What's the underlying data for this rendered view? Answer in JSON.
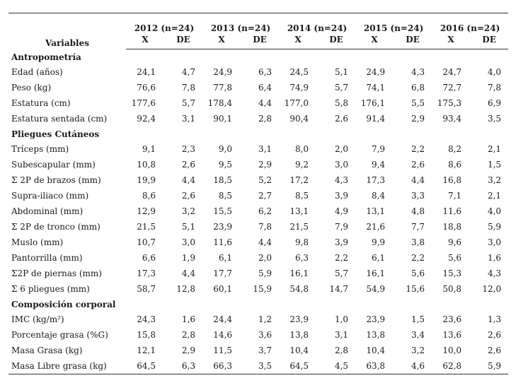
{
  "header": {
    "variables": "Variables",
    "years": [
      "2012 (n=24)",
      "2013 (n=24)",
      "2014 (n=24)",
      "2015 (n=24)",
      "2016 (n=24)"
    ],
    "x": "X",
    "de": "DE"
  },
  "sections": [
    {
      "title": "Antropometría",
      "rows": [
        {
          "label": "Edad (años)",
          "values": [
            "24,1",
            "4,7",
            "24,9",
            "6,3",
            "24,5",
            "5,1",
            "24,9",
            "4,3",
            "24,7",
            "4,0"
          ]
        },
        {
          "label": "Peso (kg)",
          "values": [
            "76,6",
            "7,8",
            "77,8",
            "6,4",
            "74,9",
            "5,7",
            "74,1",
            "6,8",
            "72,7",
            "7,8"
          ]
        },
        {
          "label": "Estatura (cm)",
          "values": [
            "177,6",
            "5,7",
            "178,4",
            "4,4",
            "177,0",
            "5,8",
            "176,1",
            "5,5",
            "175,3",
            "6,9"
          ]
        },
        {
          "label": "Estatura sentada (cm)",
          "values": [
            "92,4",
            "3,1",
            "90,1",
            "2,8",
            "90,4",
            "2,6",
            "91,4",
            "2,9",
            "93,4",
            "3,5"
          ]
        }
      ]
    },
    {
      "title": "Pliegues Cutáneos",
      "rows": [
        {
          "label": "Tríceps (mm)",
          "values": [
            "9,1",
            "2,3",
            "9,0",
            "3,1",
            "8,0",
            "2,0",
            "7,9",
            "2,2",
            "8,2",
            "2,1"
          ]
        },
        {
          "label": "Subescapular (mm)",
          "values": [
            "10,8",
            "2,6",
            "9,5",
            "2,9",
            "9,2",
            "3,0",
            "9,4",
            "2,6",
            "8,6",
            "1,5"
          ]
        },
        {
          "label": "Σ  2P de brazos (mm)",
          "values": [
            "19,9",
            "4,4",
            "18,5",
            "5,2",
            "17,2",
            "4,3",
            "17,3",
            "4,4",
            "16,8",
            "3,2"
          ]
        },
        {
          "label": "Supra-iliaco (mm)",
          "values": [
            "8,6",
            "2,6",
            "8,5",
            "2,7",
            "8,5",
            "3,9",
            "8,4",
            "3,3",
            "7,1",
            "2,1"
          ]
        },
        {
          "label": "Abdominal (mm)",
          "values": [
            "12,9",
            "3,2",
            "15,5",
            "6,2",
            "13,1",
            "4,9",
            "13,1",
            "4,8",
            "11,6",
            "4,0"
          ]
        },
        {
          "label": "Σ 2P de tronco (mm)",
          "values": [
            "21,5",
            "5,1",
            "23,9",
            "7,8",
            "21,5",
            "7,9",
            "21,6",
            "7,7",
            "18,8",
            "5,9"
          ]
        },
        {
          "label": "Muslo (mm)",
          "values": [
            "10,7",
            "3,0",
            "11,6",
            "4,4",
            "9,8",
            "3,9",
            "9,9",
            "3,8",
            "9,6",
            "3,0"
          ]
        },
        {
          "label": "Pantorrilla (mm)",
          "values": [
            "6,6",
            "1,9",
            "6,1",
            "2,0",
            "6,3",
            "2,2",
            "6,1",
            "2,2",
            "5,6",
            "1,6"
          ]
        },
        {
          "label": "Σ2P de piernas (mm)",
          "values": [
            "17,3",
            "4,4",
            "17,7",
            "5,9",
            "16,1",
            "5,7",
            "16,1",
            "5,6",
            "15,3",
            "4,3"
          ]
        },
        {
          "label": "Σ  6 pliegues (mm)",
          "values": [
            "58,7",
            "12,8",
            "60,1",
            "15,9",
            "54,8",
            "14,7",
            "54,9",
            "15,6",
            "50,8",
            "12,0"
          ]
        }
      ]
    },
    {
      "title": "Composición corporal",
      "rows": [
        {
          "label": "IMC (kg/m²)",
          "values": [
            "24,3",
            "1,6",
            "24,4",
            "1,2",
            "23,9",
            "1,0",
            "23,9",
            "1,5",
            "23,6",
            "1,3"
          ]
        },
        {
          "label": "Porcentaje grasa (%G)",
          "values": [
            "15,8",
            "2,8",
            "14,6",
            "3,6",
            "13,8",
            "3,1",
            "13,8",
            "3,4",
            "13,6",
            "2,6"
          ]
        },
        {
          "label": "Masa Grasa (kg)",
          "values": [
            "12,1",
            "2,9",
            "11,5",
            "3,7",
            "10,4",
            "2,8",
            "10,4",
            "3,2",
            "10,0",
            "2,6"
          ]
        },
        {
          "label": "Masa Libre grasa (kg)",
          "values": [
            "64,5",
            "6,3",
            "66,3",
            "3,5",
            "64,5",
            "4,5",
            "63,8",
            "4,6",
            "62,8",
            "5,9"
          ]
        }
      ]
    }
  ]
}
